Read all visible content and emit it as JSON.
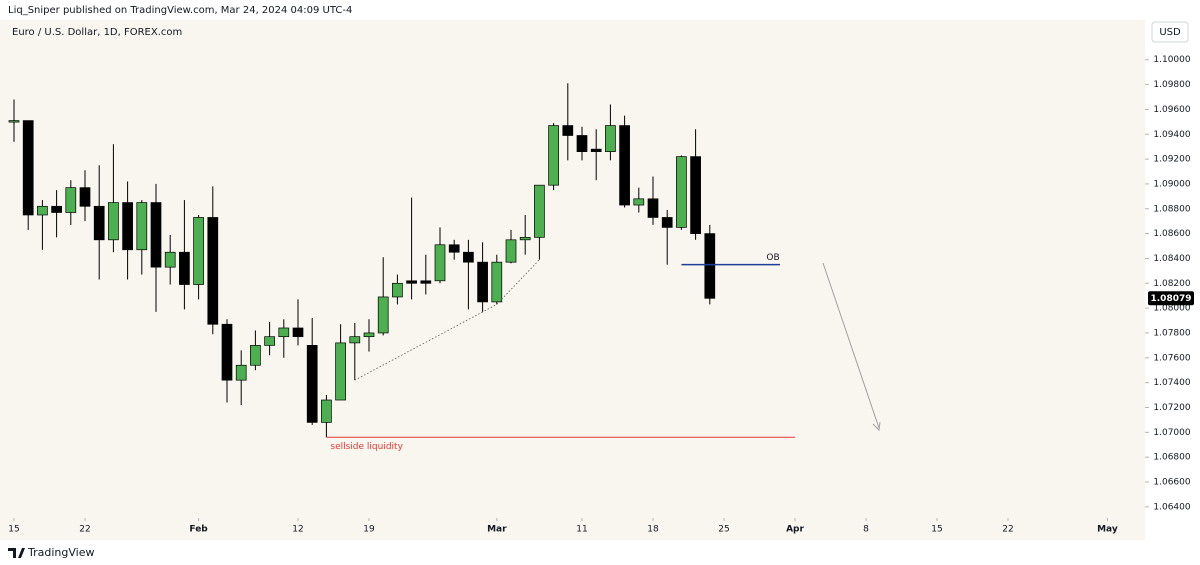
{
  "header": {
    "publisher": "Liq_Sniper published on TradingView.com, Mar 24, 2024 04:09 UTC-4",
    "footer": "TradingView"
  },
  "chart_data": {
    "type": "candlestick",
    "title": "Euro / U.S. Dollar, 1D, FOREX.com",
    "currency": "USD",
    "up_color": "#4caf50",
    "down_color": "#000000",
    "dates": [
      "01-15",
      "01-16",
      "01-17",
      "01-18",
      "01-19",
      "01-22",
      "01-23",
      "01-24",
      "01-25",
      "01-26",
      "01-29",
      "01-30",
      "01-31",
      "02-01",
      "02-02",
      "02-05",
      "02-06",
      "02-07",
      "02-08",
      "02-09",
      "02-12",
      "02-13",
      "02-14",
      "02-15",
      "02-16",
      "02-19",
      "02-20",
      "02-21",
      "02-22",
      "02-23",
      "02-26",
      "02-27",
      "02-28",
      "02-29",
      "03-01",
      "03-04",
      "03-05",
      "03-06",
      "03-07",
      "03-08",
      "03-11",
      "03-12",
      "03-13",
      "03-14",
      "03-15",
      "03-18",
      "03-19",
      "03-20",
      "03-21",
      "03-22"
    ],
    "open": [
      1.095,
      1.0951,
      1.0875,
      1.0882,
      1.0877,
      1.0897,
      1.0882,
      1.0855,
      1.0885,
      1.0847,
      1.0885,
      1.0833,
      1.0845,
      1.0819,
      1.0873,
      1.0787,
      1.0742,
      1.0754,
      1.077,
      1.0777,
      1.0784,
      1.077,
      1.0708,
      1.0726,
      1.0772,
      1.0777,
      1.078,
      1.0809,
      1.0822,
      1.0822,
      1.0822,
      1.0851,
      1.0845,
      1.0837,
      1.0805,
      1.0837,
      1.0855,
      1.0857,
      1.0899,
      1.0947,
      1.0939,
      1.0928,
      1.0926,
      1.0947,
      1.0883,
      1.0888,
      1.0873,
      1.0865,
      1.0922,
      1.086
    ],
    "high": [
      1.0968,
      1.0951,
      1.0887,
      1.0895,
      1.0903,
      1.0911,
      1.0915,
      1.0932,
      1.0902,
      1.0887,
      1.09,
      1.0859,
      1.0887,
      1.0875,
      1.0898,
      1.0791,
      1.0766,
      1.0782,
      1.0789,
      1.0791,
      1.0807,
      1.0792,
      1.073,
      1.0787,
      1.0788,
      1.0791,
      1.0841,
      1.0827,
      1.0889,
      1.0843,
      1.0865,
      1.0855,
      1.0855,
      1.0853,
      1.0843,
      1.0863,
      1.0875,
      1.0899,
      1.0949,
      1.0981,
      1.0946,
      1.0944,
      1.0964,
      1.0955,
      1.0897,
      1.0906,
      1.0879,
      1.0923,
      1.0944,
      1.0867
    ],
    "low": [
      1.0934,
      1.0863,
      1.0847,
      1.0857,
      1.0867,
      1.087,
      1.0823,
      1.0845,
      1.0823,
      1.0827,
      1.0797,
      1.0819,
      1.0799,
      1.0807,
      1.0779,
      1.0724,
      1.0722,
      1.075,
      1.0762,
      1.076,
      1.077,
      1.0706,
      1.0696,
      1.0726,
      1.0742,
      1.0765,
      1.0778,
      1.0803,
      1.0807,
      1.0811,
      1.082,
      1.0839,
      1.0799,
      1.0797,
      1.0803,
      1.0836,
      1.0843,
      1.0839,
      1.0895,
      1.0919,
      1.0919,
      1.0903,
      1.0919,
      1.0881,
      1.0877,
      1.0867,
      1.0835,
      1.0863,
      1.0855,
      1.0803
    ],
    "close": [
      1.0951,
      1.0875,
      1.0882,
      1.0877,
      1.0897,
      1.0882,
      1.0855,
      1.0885,
      1.0847,
      1.0885,
      1.0833,
      1.0845,
      1.0819,
      1.0873,
      1.0787,
      1.0742,
      1.0754,
      1.077,
      1.0777,
      1.0784,
      1.0777,
      1.0708,
      1.0726,
      1.0772,
      1.0777,
      1.078,
      1.0809,
      1.082,
      1.082,
      1.082,
      1.0851,
      1.0845,
      1.0837,
      1.0805,
      1.0837,
      1.0855,
      1.0857,
      1.0899,
      1.0947,
      1.0939,
      1.0926,
      1.0926,
      1.0947,
      1.0883,
      1.0888,
      1.0873,
      1.0865,
      1.0922,
      1.086,
      1.08079
    ],
    "ylim": [
      1.0631,
      1.1032
    ],
    "yticks": [
      {
        "value": 1.064,
        "label": "1.06400"
      },
      {
        "value": 1.066,
        "label": "1.06600"
      },
      {
        "value": 1.068,
        "label": "1.06800"
      },
      {
        "value": 1.07,
        "label": "1.07000"
      },
      {
        "value": 1.072,
        "label": "1.07200"
      },
      {
        "value": 1.074,
        "label": "1.07400"
      },
      {
        "value": 1.076,
        "label": "1.07600"
      },
      {
        "value": 1.078,
        "label": "1.07800"
      },
      {
        "value": 1.08,
        "label": "1.08000"
      },
      {
        "value": 1.082,
        "label": "1.08200"
      },
      {
        "value": 1.084,
        "label": "1.08400"
      },
      {
        "value": 1.086,
        "label": "1.08600"
      },
      {
        "value": 1.088,
        "label": "1.08800"
      },
      {
        "value": 1.09,
        "label": "1.09000"
      },
      {
        "value": 1.092,
        "label": "1.09200"
      },
      {
        "value": 1.094,
        "label": "1.09400"
      },
      {
        "value": 1.096,
        "label": "1.09600"
      },
      {
        "value": 1.098,
        "label": "1.09800"
      },
      {
        "value": 1.1,
        "label": "1.10000"
      }
    ],
    "xticks": [
      {
        "value": "01-15",
        "label": "15"
      },
      {
        "value": "01-22",
        "label": "22"
      },
      {
        "value": "02-01",
        "label": "Feb"
      },
      {
        "value": "02-12",
        "label": "12"
      },
      {
        "value": "02-19",
        "label": "19"
      },
      {
        "value": "03-01",
        "label": "Mar"
      },
      {
        "value": "03-11",
        "label": "11"
      },
      {
        "value": "03-18",
        "label": "18"
      },
      {
        "value": "03-25",
        "label": "25"
      },
      {
        "value": "04-01",
        "label": "Apr"
      },
      {
        "value": "04-08",
        "label": "8"
      },
      {
        "value": "04-15",
        "label": "15"
      },
      {
        "value": "04-22",
        "label": "22"
      },
      {
        "value": "05-01",
        "label": "May"
      }
    ],
    "annotations": {
      "order_block": "OB",
      "sellside": "sellside liquidity"
    }
  }
}
